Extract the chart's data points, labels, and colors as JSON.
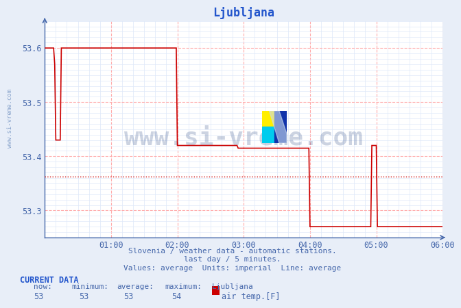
{
  "title": "Ljubljana",
  "line_color": "#cc0000",
  "avg_line_color": "#cc0000",
  "avg_line_style": "dotted",
  "avg_value": 53.362,
  "bg_color": "#e8eef8",
  "plot_bg_color": "#ffffff",
  "grid_color_major": "#ffaaaa",
  "grid_color_minor": "#dde8f8",
  "xlabel_color": "#4466aa",
  "ylabel_color": "#4466aa",
  "title_color": "#2255cc",
  "xlim": [
    0,
    360
  ],
  "ylim": [
    53.25,
    53.65
  ],
  "yticks": [
    53.3,
    53.4,
    53.5,
    53.6
  ],
  "xticks": [
    60,
    120,
    180,
    240,
    300,
    360
  ],
  "xtick_labels": [
    "01:00",
    "02:00",
    "03:00",
    "04:00",
    "05:00",
    "06:00"
  ],
  "ylabel_text": "www.si-vreme.com",
  "caption_line1": "Slovenia / weather data - automatic stations.",
  "caption_line2": "last day / 5 minutes.",
  "caption_line3": "Values: average  Units: imperial  Line: average",
  "current_data_label": "CURRENT DATA",
  "current_now": "53",
  "current_min": "53",
  "current_avg": "53",
  "current_max": "54",
  "current_station": "Ljubljana",
  "current_param": "air temp.[F]",
  "watermark_text": "www.si-vreme.com",
  "x_data": [
    0,
    5,
    8,
    9,
    10,
    14,
    15,
    20,
    25,
    30,
    35,
    40,
    45,
    50,
    55,
    60,
    65,
    70,
    75,
    80,
    85,
    90,
    95,
    100,
    105,
    110,
    115,
    119,
    120,
    121,
    125,
    130,
    135,
    140,
    145,
    150,
    155,
    160,
    165,
    170,
    174,
    175,
    176,
    180,
    185,
    190,
    195,
    200,
    205,
    210,
    215,
    220,
    225,
    230,
    235,
    239,
    240,
    241,
    245,
    250,
    255,
    260,
    265,
    270,
    275,
    280,
    285,
    290,
    295,
    296,
    300,
    301,
    305,
    310,
    315,
    320,
    325,
    330,
    335,
    340,
    345,
    350,
    355,
    360
  ],
  "y_data": [
    53.6,
    53.6,
    53.6,
    53.57,
    53.43,
    53.43,
    53.6,
    53.6,
    53.6,
    53.6,
    53.6,
    53.6,
    53.6,
    53.6,
    53.6,
    53.6,
    53.6,
    53.6,
    53.6,
    53.6,
    53.6,
    53.6,
    53.6,
    53.6,
    53.6,
    53.6,
    53.6,
    53.6,
    53.42,
    53.42,
    53.42,
    53.42,
    53.42,
    53.42,
    53.42,
    53.42,
    53.42,
    53.42,
    53.42,
    53.42,
    53.42,
    53.415,
    53.415,
    53.415,
    53.415,
    53.415,
    53.415,
    53.415,
    53.415,
    53.415,
    53.415,
    53.415,
    53.415,
    53.415,
    53.415,
    53.415,
    53.27,
    53.27,
    53.27,
    53.27,
    53.27,
    53.27,
    53.27,
    53.27,
    53.27,
    53.27,
    53.27,
    53.27,
    53.27,
    53.42,
    53.42,
    53.27,
    53.27,
    53.27,
    53.27,
    53.27,
    53.27,
    53.27,
    53.27,
    53.27,
    53.27,
    53.27,
    53.27,
    53.27
  ]
}
